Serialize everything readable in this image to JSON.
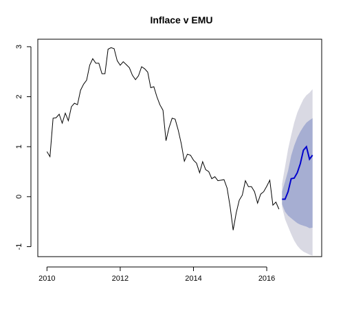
{
  "chart_data": {
    "type": "line",
    "title": "Inflace v EMU",
    "xlabel": "",
    "ylabel": "",
    "xlim": [
      2009.75,
      2017.5
    ],
    "ylim": [
      -1.2,
      3.15
    ],
    "grid": false,
    "x_ticks": [
      2010,
      2012,
      2014,
      2016
    ],
    "x_tick_labels": [
      "2010",
      "2012",
      "2014",
      "2016"
    ],
    "y_ticks": [
      -1,
      0,
      1,
      2,
      3
    ],
    "y_tick_labels": [
      "-1",
      "0",
      "1",
      "2",
      "3"
    ],
    "colors": {
      "history": "#000000",
      "forecast": "#0000cc",
      "interval_80": "#a6aed2",
      "interval_95": "#d9d9e3",
      "axis": "#000000"
    },
    "history": {
      "x": [
        2010.0,
        2010.083,
        2010.167,
        2010.25,
        2010.333,
        2010.417,
        2010.5,
        2010.583,
        2010.667,
        2010.75,
        2010.833,
        2010.917,
        2011.0,
        2011.083,
        2011.167,
        2011.25,
        2011.333,
        2011.417,
        2011.5,
        2011.583,
        2011.667,
        2011.75,
        2011.833,
        2011.917,
        2012.0,
        2012.083,
        2012.167,
        2012.25,
        2012.333,
        2012.417,
        2012.5,
        2012.583,
        2012.667,
        2012.75,
        2012.833,
        2012.917,
        2013.0,
        2013.083,
        2013.167,
        2013.25,
        2013.333,
        2013.417,
        2013.5,
        2013.583,
        2013.667,
        2013.75,
        2013.833,
        2013.917,
        2014.0,
        2014.083,
        2014.167,
        2014.25,
        2014.333,
        2014.417,
        2014.5,
        2014.583,
        2014.667,
        2014.75,
        2014.833,
        2014.917,
        2015.0,
        2015.083,
        2015.167,
        2015.25,
        2015.333,
        2015.417,
        2015.5,
        2015.583,
        2015.667,
        2015.75,
        2015.833,
        2015.917,
        2016.0,
        2016.083,
        2016.167,
        2016.25,
        2016.333
      ],
      "y": [
        0.9,
        0.8,
        1.57,
        1.58,
        1.65,
        1.47,
        1.67,
        1.52,
        1.8,
        1.87,
        1.84,
        2.13,
        2.25,
        2.33,
        2.63,
        2.76,
        2.67,
        2.67,
        2.46,
        2.46,
        2.95,
        2.98,
        2.96,
        2.72,
        2.63,
        2.7,
        2.64,
        2.58,
        2.43,
        2.34,
        2.42,
        2.6,
        2.56,
        2.49,
        2.18,
        2.2,
        2.0,
        1.84,
        1.73,
        1.12,
        1.38,
        1.57,
        1.55,
        1.33,
        1.06,
        0.71,
        0.85,
        0.83,
        0.73,
        0.67,
        0.48,
        0.7,
        0.54,
        0.5,
        0.36,
        0.4,
        0.32,
        0.33,
        0.34,
        0.17,
        -0.2,
        -0.67,
        -0.32,
        -0.07,
        0.03,
        0.32,
        0.2,
        0.2,
        0.1,
        -0.13,
        0.05,
        0.1,
        0.21,
        0.33,
        -0.17,
        -0.11,
        -0.25
      ]
    },
    "forecast": {
      "x": [
        2016.417,
        2016.5,
        2016.583,
        2016.667,
        2016.75,
        2016.833,
        2016.917,
        2017.0,
        2017.083,
        2017.167,
        2017.25
      ],
      "y": [
        -0.05,
        -0.05,
        0.1,
        0.36,
        0.37,
        0.48,
        0.66,
        0.93,
        1.0,
        0.75,
        0.83
      ],
      "lo80": [
        -0.15,
        -0.3,
        -0.38,
        -0.43,
        -0.48,
        -0.53,
        -0.56,
        -0.58,
        -0.6,
        -0.63,
        -0.62
      ],
      "hi80": [
        0.1,
        0.3,
        0.52,
        0.82,
        1.02,
        1.18,
        1.3,
        1.4,
        1.48,
        1.53,
        1.57
      ],
      "lo95": [
        -0.2,
        -0.45,
        -0.6,
        -0.75,
        -0.88,
        -0.98,
        -1.05,
        -1.1,
        -1.13,
        -1.16,
        -1.18
      ],
      "hi95": [
        0.25,
        0.6,
        0.95,
        1.23,
        1.48,
        1.68,
        1.82,
        1.95,
        2.03,
        2.08,
        2.15
      ]
    }
  }
}
